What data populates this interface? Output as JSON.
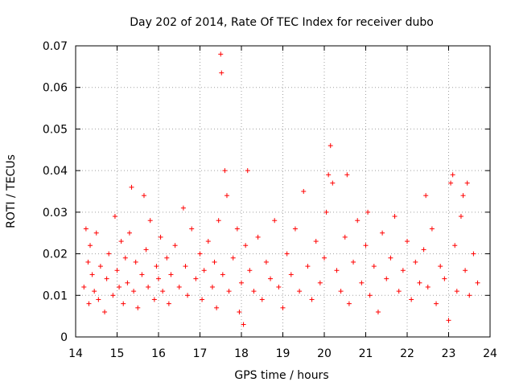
{
  "chart_data": {
    "type": "scatter",
    "title": "Day 202 of 2014, Rate Of TEC Index for receiver dubo",
    "xlabel": "GPS time / hours",
    "ylabel": "ROTI / TECUs",
    "xlim": [
      14,
      24
    ],
    "ylim": [
      0,
      0.07
    ],
    "xticks": [
      14,
      15,
      16,
      17,
      18,
      19,
      20,
      21,
      22,
      23,
      24
    ],
    "xtick_labels": [
      "14",
      "15",
      "16",
      "17",
      "18",
      "19",
      "20",
      "21",
      "22",
      "23",
      "24"
    ],
    "yticks": [
      0,
      0.01,
      0.02,
      0.03,
      0.04,
      0.05,
      0.06,
      0.07
    ],
    "ytick_labels": [
      "0",
      "0.01",
      "0.02",
      "0.03",
      "0.04",
      "0.05",
      "0.06",
      "0.07"
    ],
    "grid": true,
    "marker": "plus",
    "color": "#ff0000",
    "series": [
      {
        "name": "ROTI",
        "x": [
          14.2,
          14.25,
          14.3,
          14.32,
          14.35,
          14.4,
          14.45,
          14.5,
          14.55,
          14.6,
          14.7,
          14.75,
          14.8,
          14.9,
          14.95,
          15.0,
          15.05,
          15.1,
          15.15,
          15.2,
          15.25,
          15.3,
          15.35,
          15.4,
          15.45,
          15.5,
          15.6,
          15.65,
          15.7,
          15.75,
          15.8,
          15.9,
          15.95,
          16.0,
          16.05,
          16.1,
          16.2,
          16.25,
          16.3,
          16.4,
          16.5,
          16.6,
          16.65,
          16.7,
          16.8,
          16.9,
          17.0,
          17.05,
          17.1,
          17.2,
          17.3,
          17.35,
          17.4,
          17.45,
          17.5,
          17.52,
          17.55,
          17.6,
          17.65,
          17.7,
          17.8,
          17.9,
          17.95,
          18.0,
          18.05,
          18.1,
          18.15,
          18.2,
          18.3,
          18.4,
          18.5,
          18.6,
          18.7,
          18.8,
          18.9,
          19.0,
          19.1,
          19.2,
          19.3,
          19.4,
          19.5,
          19.6,
          19.7,
          19.8,
          19.9,
          20.0,
          20.05,
          20.1,
          20.15,
          20.2,
          20.3,
          20.4,
          20.5,
          20.55,
          20.6,
          20.7,
          20.8,
          20.9,
          21.0,
          21.05,
          21.1,
          21.2,
          21.3,
          21.4,
          21.5,
          21.6,
          21.7,
          21.8,
          21.9,
          22.0,
          22.1,
          22.2,
          22.3,
          22.4,
          22.45,
          22.5,
          22.6,
          22.7,
          22.8,
          22.9,
          23.0,
          23.05,
          23.1,
          23.15,
          23.2,
          23.3,
          23.35,
          23.4,
          23.45,
          23.5,
          23.6,
          23.7
        ],
        "y": [
          0.012,
          0.026,
          0.018,
          0.008,
          0.022,
          0.015,
          0.011,
          0.025,
          0.009,
          0.017,
          0.006,
          0.014,
          0.02,
          0.01,
          0.029,
          0.016,
          0.012,
          0.023,
          0.008,
          0.019,
          0.013,
          0.025,
          0.036,
          0.011,
          0.018,
          0.007,
          0.015,
          0.034,
          0.021,
          0.012,
          0.028,
          0.009,
          0.017,
          0.014,
          0.024,
          0.011,
          0.019,
          0.008,
          0.015,
          0.022,
          0.012,
          0.031,
          0.017,
          0.01,
          0.026,
          0.014,
          0.02,
          0.009,
          0.016,
          0.023,
          0.012,
          0.018,
          0.007,
          0.028,
          0.068,
          0.0635,
          0.015,
          0.04,
          0.034,
          0.011,
          0.019,
          0.026,
          0.006,
          0.013,
          0.003,
          0.022,
          0.04,
          0.016,
          0.011,
          0.024,
          0.009,
          0.018,
          0.014,
          0.028,
          0.012,
          0.007,
          0.02,
          0.015,
          0.026,
          0.011,
          0.035,
          0.017,
          0.009,
          0.023,
          0.013,
          0.019,
          0.03,
          0.039,
          0.046,
          0.037,
          0.016,
          0.011,
          0.024,
          0.039,
          0.008,
          0.018,
          0.028,
          0.013,
          0.022,
          0.03,
          0.01,
          0.017,
          0.006,
          0.025,
          0.014,
          0.019,
          0.029,
          0.011,
          0.016,
          0.023,
          0.009,
          0.018,
          0.013,
          0.021,
          0.034,
          0.012,
          0.026,
          0.008,
          0.017,
          0.014,
          0.004,
          0.037,
          0.039,
          0.022,
          0.011,
          0.029,
          0.034,
          0.016,
          0.037,
          0.01,
          0.02,
          0.013
        ]
      }
    ]
  }
}
